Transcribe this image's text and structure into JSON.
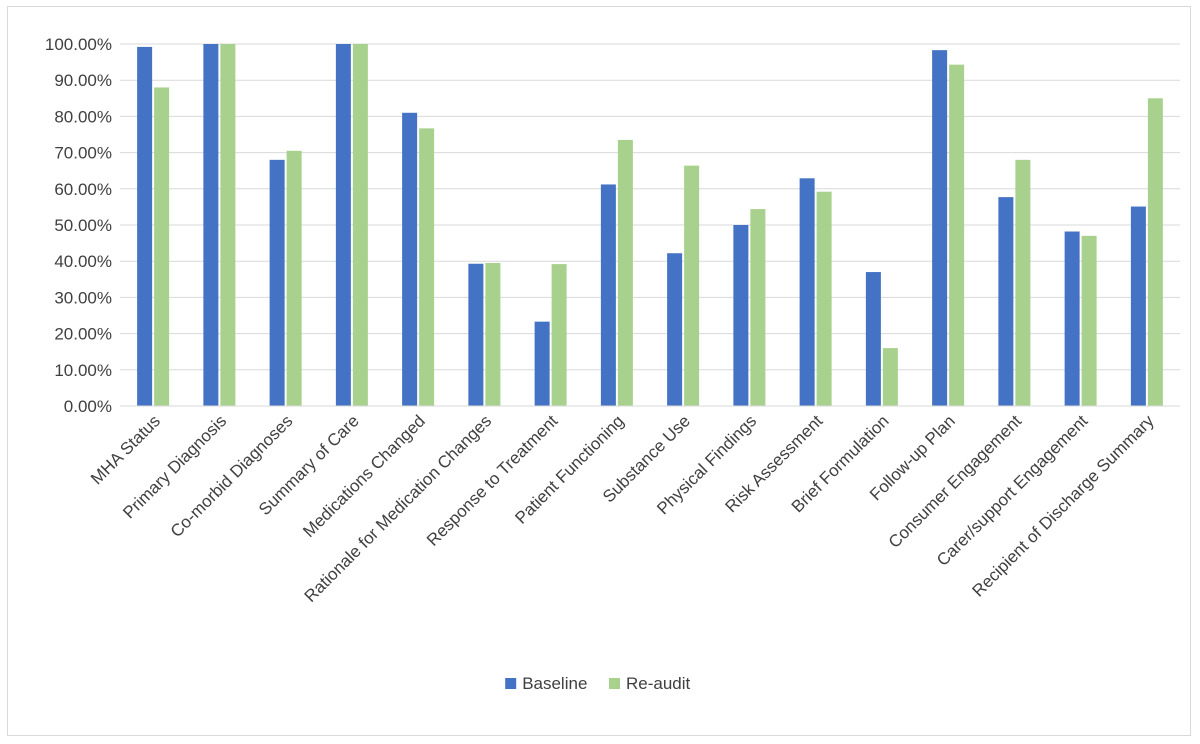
{
  "chart_data": {
    "type": "bar",
    "title": "",
    "xlabel": "",
    "ylabel": "",
    "categories": [
      "MHA Status",
      "Primary Diagnosis",
      "Co-morbid Diagnoses",
      "Summary of Care",
      "Medications Changed",
      "Rationale for Medication Changes",
      "Response to Treatment",
      "Patient Functioning",
      "Substance Use",
      "Physical Findings",
      "Risk Assessment",
      "Brief Formulation",
      "Follow-up Plan",
      "Consumer Engagement",
      "Carer/support Engagement",
      "Recipient of Discharge Summary"
    ],
    "series": [
      {
        "name": "Baseline",
        "color": "#4472c4",
        "values": [
          99.2,
          100,
          68.0,
          100,
          81.0,
          39.3,
          23.3,
          61.2,
          42.2,
          50.0,
          62.9,
          37.0,
          98.3,
          57.7,
          48.2,
          55.1
        ]
      },
      {
        "name": "Re-audit",
        "color": "#a9d18e",
        "values": [
          88.0,
          100,
          70.5,
          100,
          76.7,
          39.5,
          39.2,
          73.5,
          66.4,
          54.4,
          59.2,
          16.0,
          94.3,
          68.0,
          47.0,
          85.0
        ]
      }
    ],
    "yticks": [
      "0.00%",
      "10.00%",
      "20.00%",
      "30.00%",
      "40.00%",
      "50.00%",
      "60.00%",
      "70.00%",
      "80.00%",
      "90.00%",
      "100.00%"
    ],
    "ylim": [
      0,
      100
    ],
    "grid": true,
    "legend": {
      "position": "bottom"
    },
    "gridline_color": "#d9d9d9"
  }
}
